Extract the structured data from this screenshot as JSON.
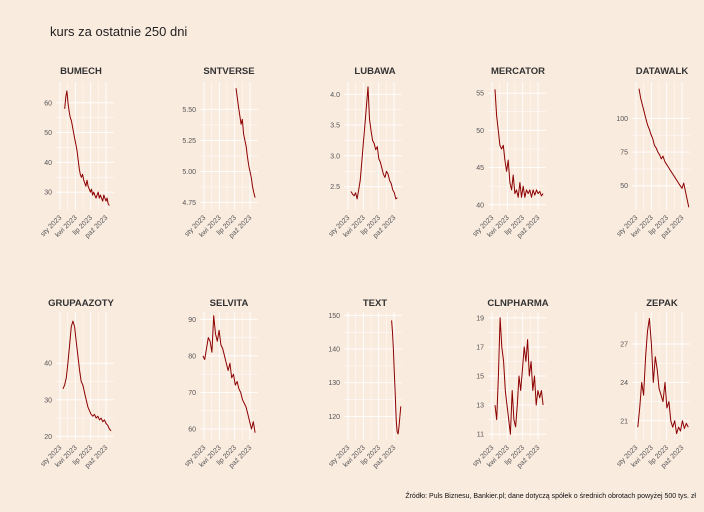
{
  "title": "kurs za ostatnie 250 dni",
  "source": "Źródło: Puls Biznesu, Bankier.pl; dane dotyczą spółek o średnich obrotach powyżej 500 tys. zł",
  "colors": {
    "background": "#faebdf",
    "grid": "#ffffff",
    "line": "#8b0000"
  },
  "chart_data": [
    {
      "type": "line",
      "title": "BUMECH",
      "x_ticks": [
        "sty 2023",
        "kwi 2023",
        "lip 2023",
        "paź 2023"
      ],
      "y_ticks": [
        30,
        40,
        50,
        60
      ],
      "ylim": [
        24,
        67
      ],
      "x_start": 0.15,
      "x_end": 0.92,
      "series": [
        {
          "values": [
            58,
            62,
            64,
            60,
            57,
            55,
            54,
            52,
            50,
            48,
            46,
            44,
            41,
            38,
            36,
            35,
            36,
            34,
            33,
            32,
            34,
            32,
            31,
            30,
            31,
            29,
            30,
            29,
            28,
            29,
            30,
            28,
            29,
            28,
            27,
            29,
            28,
            27,
            28,
            26,
            25.5
          ]
        }
      ]
    },
    {
      "type": "line",
      "title": "SNTVERSE",
      "x_ticks": [
        "sty 2023",
        "kwi 2023",
        "lip 2023",
        "paź 2023"
      ],
      "y_ticks": [
        4.75,
        5.0,
        5.25,
        5.5
      ],
      "ylim": [
        4.69,
        5.72
      ],
      "x_start": 0.62,
      "x_end": 0.95,
      "series": [
        {
          "values": [
            5.67,
            5.6,
            5.52,
            5.45,
            5.38,
            5.42,
            5.3,
            5.25,
            5.2,
            5.12,
            5.05,
            5.0,
            4.95,
            4.88,
            4.83,
            4.79
          ]
        }
      ]
    },
    {
      "type": "line",
      "title": "LUBAWA",
      "x_ticks": [
        "sty 2023",
        "kwi 2023",
        "lip 2023",
        "paź 2023"
      ],
      "y_ticks": [
        2.5,
        3.0,
        3.5,
        4.0
      ],
      "ylim": [
        2.12,
        4.2
      ],
      "x_start": 0.12,
      "x_end": 0.92,
      "series": [
        {
          "values": [
            2.42,
            2.38,
            2.35,
            2.4,
            2.3,
            2.45,
            2.6,
            2.9,
            3.2,
            3.5,
            3.8,
            4.12,
            3.6,
            3.4,
            3.25,
            3.2,
            3.1,
            3.15,
            2.95,
            2.9,
            2.8,
            2.7,
            2.65,
            2.75,
            2.7,
            2.6,
            2.55,
            2.45,
            2.4,
            2.3,
            2.32
          ]
        }
      ]
    },
    {
      "type": "line",
      "title": "MERCATOR",
      "x_ticks": [
        "sty 2023",
        "kwi 2023",
        "lip 2023",
        "paź 2023"
      ],
      "y_ticks": [
        40,
        45,
        50,
        55
      ],
      "ylim": [
        39.3,
        56.5
      ],
      "x_start": 0.12,
      "x_end": 0.95,
      "series": [
        {
          "values": [
            55.5,
            52,
            50,
            48,
            47.5,
            48,
            46,
            44.5,
            46,
            43,
            42,
            44,
            41.5,
            42,
            41,
            43,
            41,
            42.5,
            41,
            42,
            41.5,
            42,
            41,
            42,
            41.3,
            42,
            41.5,
            41.8,
            41.2,
            41.5
          ]
        }
      ]
    },
    {
      "type": "line",
      "title": "DATAWALK",
      "x_ticks": [
        "sty 2023",
        "kwi 2023",
        "lip 2023",
        "paź 2023"
      ],
      "y_ticks": [
        50,
        75,
        100
      ],
      "ylim": [
        32,
        127
      ],
      "x_start": 0.12,
      "x_end": 0.98,
      "series": [
        {
          "values": [
            122,
            115,
            110,
            105,
            100,
            95,
            92,
            88,
            85,
            80,
            78,
            75,
            73,
            70,
            72,
            68,
            66,
            64,
            62,
            60,
            58,
            56,
            54,
            52,
            50,
            48,
            52,
            46,
            40,
            34
          ]
        }
      ]
    },
    {
      "type": "line",
      "title": "GRUPAAZOTY",
      "x_ticks": [
        "sty 2023",
        "kwi 2023",
        "lip 2023",
        "paź 2023"
      ],
      "y_ticks": [
        20,
        30,
        40
      ],
      "ylim": [
        19,
        54
      ],
      "x_start": 0.12,
      "x_end": 0.95,
      "series": [
        {
          "values": [
            33,
            34,
            36,
            40,
            45,
            50,
            51.5,
            50,
            46,
            42,
            38,
            35,
            34,
            32,
            30,
            28,
            27,
            26,
            25.5,
            26,
            25,
            25.5,
            24.5,
            25,
            24,
            24.5,
            23.5,
            23,
            22,
            21.5
          ]
        }
      ]
    },
    {
      "type": "line",
      "title": "SELVITA",
      "x_ticks": [
        "sty 2023",
        "kwi 2023",
        "lip 2023",
        "paź 2023"
      ],
      "y_ticks": [
        60,
        70,
        80,
        90
      ],
      "ylim": [
        57,
        92
      ],
      "x_start": 0.05,
      "x_end": 0.95,
      "series": [
        {
          "values": [
            80,
            79,
            82,
            85,
            84,
            81,
            91,
            86,
            84,
            87,
            83,
            82,
            80,
            78,
            76,
            78,
            74,
            75,
            72,
            73,
            71,
            70,
            68,
            67,
            66,
            64,
            62,
            60,
            62,
            59
          ]
        }
      ]
    },
    {
      "type": "line",
      "title": "TEXT",
      "x_ticks": [
        "sty 2023",
        "kwi 2023",
        "lip 2023",
        "paź 2023"
      ],
      "y_ticks": [
        120,
        130,
        140,
        150
      ],
      "ylim": [
        113,
        151
      ],
      "x_start": 0.82,
      "x_end": 0.98,
      "series": [
        {
          "values": [
            148.5,
            145,
            140,
            133,
            126,
            119,
            115.5,
            114.8,
            117,
            120,
            123
          ]
        }
      ]
    },
    {
      "type": "line",
      "title": "CLNPHARMA",
      "x_ticks": [
        "sty 2023",
        "kwi 2023",
        "lip 2023",
        "paź 2023"
      ],
      "y_ticks": [
        11,
        13,
        15,
        17,
        19
      ],
      "ylim": [
        10.6,
        19.4
      ],
      "x_start": 0.12,
      "x_end": 0.95,
      "series": [
        {
          "values": [
            13,
            12,
            15,
            19,
            17,
            16,
            14,
            13,
            12,
            11,
            14,
            12,
            11.5,
            13,
            15,
            14,
            15.5,
            17,
            16,
            17.5,
            15,
            16,
            14,
            15,
            13,
            14,
            13.5,
            14,
            13
          ]
        }
      ]
    },
    {
      "type": "line",
      "title": "ZEPAK",
      "x_ticks": [
        "sty 2023",
        "kwi 2023",
        "lip 2023",
        "paź 2023"
      ],
      "y_ticks": [
        21,
        24,
        27
      ],
      "ylim": [
        19.5,
        29.5
      ],
      "x_start": 0.1,
      "x_end": 0.97,
      "series": [
        {
          "values": [
            20.5,
            22,
            24,
            23,
            26,
            28,
            29,
            27,
            24,
            26,
            25,
            23.5,
            23,
            22.5,
            24,
            22,
            22.5,
            21,
            20.5,
            21,
            20,
            20.5,
            20.2,
            21,
            20.4,
            20.8,
            20.5
          ]
        }
      ]
    }
  ]
}
